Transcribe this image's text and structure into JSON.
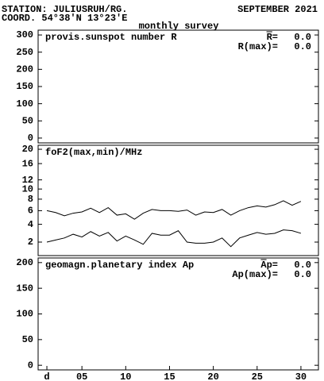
{
  "header": {
    "station": "STATION: JULIUSRUH/RG.",
    "date": "SEPTEMBER 2021",
    "coord": "COORD. 54°38'N 13°23'E",
    "subtitle": "monthly survey"
  },
  "chart_data": [
    {
      "type": "line",
      "title": "provis.sunspot number R",
      "annotations": [
        {
          "label": "R=",
          "overline": true,
          "value": {
            "value": 0,
            "label": "0.0"
          }
        },
        {
          "label": "R(max)=",
          "value": {
            "value": 0,
            "label": "0.0"
          }
        }
      ],
      "xlim": [
        0,
        32
      ],
      "ylim": [
        -14,
        314
      ],
      "yticks": [
        0,
        50,
        100,
        150,
        200,
        250,
        300
      ],
      "series": []
    },
    {
      "type": "line",
      "title": "foF2(max,min)/MHz",
      "scale": "sqrt",
      "xlim": [
        0,
        32
      ],
      "ylim": [
        0.94,
        21.2
      ],
      "yticks": [
        2,
        4,
        6,
        8,
        10,
        12,
        16,
        20
      ],
      "x": [
        1,
        2,
        3,
        4,
        5,
        6,
        7,
        8,
        9,
        10,
        11,
        12,
        13,
        14,
        15,
        16,
        17,
        18,
        19,
        20,
        21,
        22,
        23,
        24,
        25,
        26,
        27,
        28,
        29,
        30
      ],
      "series": [
        {
          "name": "max",
          "color": "#000000",
          "values": [
            6.0,
            5.7,
            5.2,
            5.6,
            5.8,
            6.4,
            5.7,
            6.5,
            5.3,
            5.5,
            4.7,
            5.6,
            6.2,
            6.0,
            6.0,
            5.9,
            6.1,
            5.3,
            5.8,
            5.7,
            6.2,
            5.3,
            6.0,
            6.5,
            6.8,
            6.6,
            7.0,
            7.7,
            6.9,
            7.6
          ]
        },
        {
          "name": "min",
          "color": "#000000",
          "values": [
            2.0,
            2.2,
            2.4,
            2.8,
            2.5,
            3.1,
            2.6,
            3.0,
            2.1,
            2.6,
            2.2,
            1.8,
            2.9,
            2.7,
            2.7,
            3.2,
            2.0,
            1.9,
            1.9,
            2.0,
            2.4,
            1.6,
            2.4,
            2.7,
            3.0,
            2.8,
            2.9,
            3.3,
            3.2,
            2.9
          ]
        }
      ]
    },
    {
      "type": "line",
      "title": "geomagn.planetary index Ap",
      "annotations": [
        {
          "label": "Ap=",
          "overline": true,
          "value": {
            "value": 0,
            "label": "0.0"
          }
        },
        {
          "label": "Ap(max)=",
          "value": {
            "value": 0,
            "label": "0.0"
          }
        }
      ],
      "xlim": [
        0,
        32
      ],
      "ylim": [
        -9,
        209
      ],
      "yticks": [
        0,
        50,
        100,
        150,
        200
      ],
      "xticks": [
        {
          "value": 1,
          "label": "d"
        },
        {
          "value": 5,
          "label": "05"
        },
        10,
        15,
        20,
        25,
        30
      ],
      "series": []
    }
  ]
}
